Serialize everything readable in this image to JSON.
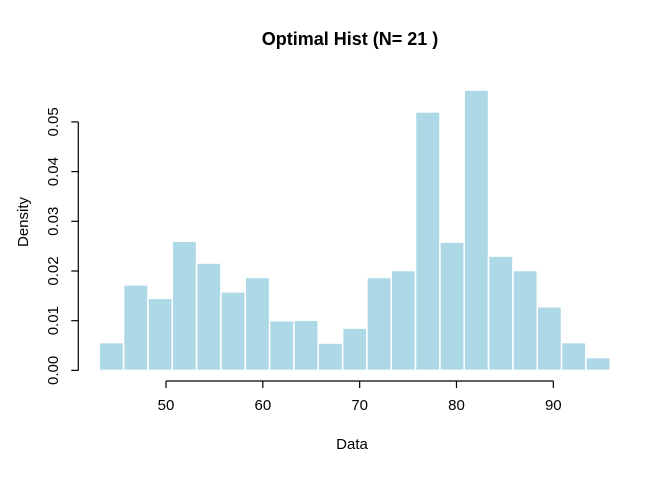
{
  "chart_data": {
    "type": "bar",
    "subtype": "histogram",
    "title": "Optimal Hist (N= 21 )",
    "xlabel": "Data",
    "ylabel": "Density",
    "x_ticks": [
      50,
      60,
      70,
      80,
      90
    ],
    "y_tick_labels": [
      "0.00",
      "0.01",
      "0.02",
      "0.03",
      "0.04",
      "0.05"
    ],
    "xlim": [
      40.9,
      97.4
    ],
    "ylim": [
      0,
      0.0575
    ],
    "grid": false,
    "legend": false,
    "bin_edges": [
      43.11,
      45.62,
      48.14,
      50.65,
      53.16,
      55.67,
      58.19,
      60.7,
      63.21,
      65.72,
      68.24,
      70.75,
      73.26,
      75.77,
      78.29,
      80.8,
      83.31,
      85.83,
      88.34,
      90.85,
      93.36,
      95.88
    ],
    "densities": [
      0.0056,
      0.0172,
      0.0145,
      0.026,
      0.0216,
      0.0158,
      0.0187,
      0.01,
      0.0101,
      0.0055,
      0.0085,
      0.0187,
      0.0201,
      0.052,
      0.0258,
      0.0564,
      0.023,
      0.0201,
      0.0128,
      0.0056,
      0.0026
    ],
    "bar_fill_color": "#ADD8E6",
    "bar_border_color": "#FFFFFF",
    "axis_color": "#000000",
    "text_color": "#000000",
    "background_color": "#FFFFFF"
  }
}
